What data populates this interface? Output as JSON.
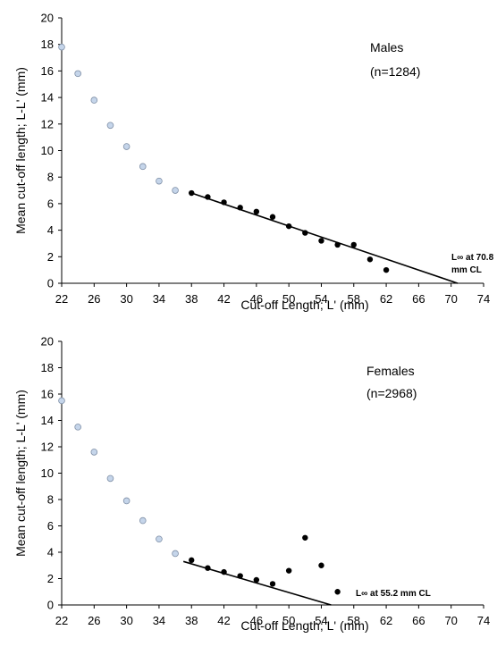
{
  "chart_data": [
    {
      "type": "scatter",
      "xlabel": "Cut-off Length; L' (mm)",
      "ylabel": "Mean cut-off length;  L-L' (mm)",
      "xlim": [
        22,
        74
      ],
      "ylim": [
        0,
        20
      ],
      "xticks": [
        22,
        26,
        30,
        34,
        38,
        42,
        46,
        50,
        54,
        58,
        62,
        66,
        70,
        74
      ],
      "yticks": [
        0,
        2,
        4,
        6,
        8,
        10,
        12,
        14,
        16,
        18,
        20
      ],
      "annotation_group": "Males",
      "annotation_n": "(n=1284)",
      "linf_label": "L∞ at 70.8 mm CL",
      "linf_line1": "L∞ at 70.8",
      "linf_line2": "mm  CL",
      "series": [
        {
          "style": "open",
          "color": "#c5d5ea",
          "points": [
            [
              22,
              17.8
            ],
            [
              24,
              15.8
            ],
            [
              26,
              13.8
            ],
            [
              28,
              11.9
            ],
            [
              30,
              10.3
            ],
            [
              32,
              8.8
            ],
            [
              34,
              7.7
            ],
            [
              36,
              7.0
            ]
          ]
        },
        {
          "style": "filled",
          "color": "#000000",
          "points": [
            [
              38,
              6.8
            ],
            [
              40,
              6.5
            ],
            [
              42,
              6.1
            ],
            [
              44,
              5.7
            ],
            [
              46,
              5.4
            ],
            [
              48,
              5.0
            ],
            [
              50,
              4.3
            ],
            [
              52,
              3.8
            ],
            [
              54,
              3.2
            ],
            [
              56,
              2.9
            ],
            [
              58,
              2.9
            ],
            [
              60,
              1.8
            ],
            [
              62,
              1.0
            ]
          ]
        }
      ],
      "regression": {
        "x": [
          38,
          70.8
        ],
        "y": [
          6.8,
          0
        ]
      }
    },
    {
      "type": "scatter",
      "xlabel": "Cut-off Length; L' (mm)",
      "ylabel": "Mean cut-off length;  L-L' (mm)",
      "xlim": [
        22,
        74
      ],
      "ylim": [
        0,
        20
      ],
      "xticks": [
        22,
        26,
        30,
        34,
        38,
        42,
        46,
        50,
        54,
        58,
        62,
        66,
        70,
        74
      ],
      "yticks": [
        0,
        2,
        4,
        6,
        8,
        10,
        12,
        14,
        16,
        18,
        20
      ],
      "annotation_group": "Females",
      "annotation_n": "(n=2968)",
      "linf_label": "L∞ at 55.2 mm CL",
      "linf_line1": "L∞ at 55.2 mm CL",
      "linf_line2": "",
      "series": [
        {
          "style": "open",
          "color": "#c5d5ea",
          "points": [
            [
              22,
              15.5
            ],
            [
              24,
              13.5
            ],
            [
              26,
              11.6
            ],
            [
              28,
              9.6
            ],
            [
              30,
              7.9
            ],
            [
              32,
              6.4
            ],
            [
              34,
              5.0
            ],
            [
              36,
              3.9
            ]
          ]
        },
        {
          "style": "filled",
          "color": "#000000",
          "points": [
            [
              38,
              3.4
            ],
            [
              40,
              2.8
            ],
            [
              42,
              2.5
            ],
            [
              44,
              2.2
            ],
            [
              46,
              1.9
            ],
            [
              48,
              1.6
            ],
            [
              50,
              2.6
            ],
            [
              52,
              5.1
            ],
            [
              54,
              3.0
            ],
            [
              56,
              1.0
            ]
          ]
        }
      ],
      "regression": {
        "x": [
          37,
          55.2
        ],
        "y": [
          3.3,
          0
        ]
      }
    }
  ]
}
